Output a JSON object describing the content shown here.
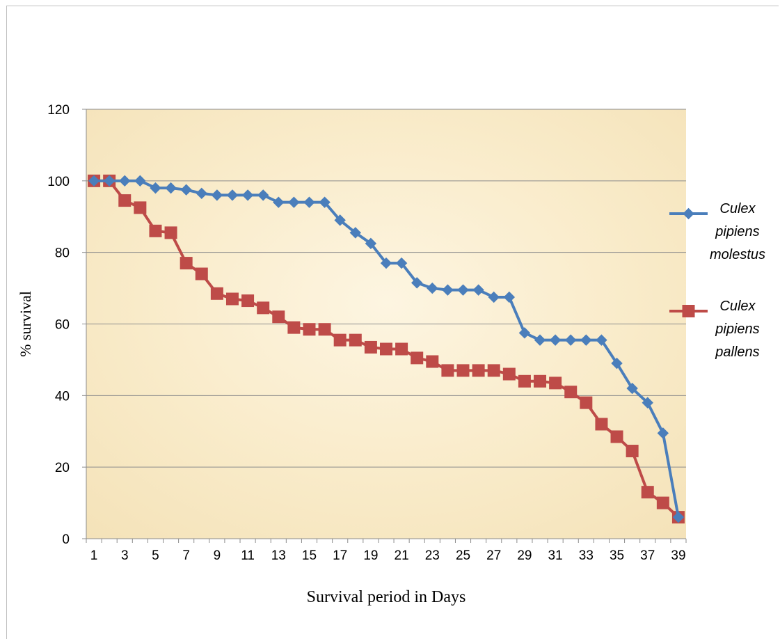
{
  "chart_data": {
    "type": "line",
    "title": "",
    "xlabel": "Survival period in Days",
    "ylabel": "% survival",
    "ylim": [
      0,
      120
    ],
    "yticks": [
      0,
      20,
      40,
      60,
      80,
      100,
      120
    ],
    "x": [
      1,
      2,
      3,
      4,
      5,
      6,
      7,
      8,
      9,
      10,
      11,
      12,
      13,
      14,
      15,
      16,
      17,
      18,
      19,
      20,
      21,
      22,
      23,
      24,
      25,
      26,
      27,
      28,
      29,
      30,
      31,
      32,
      33,
      34,
      35,
      36,
      37,
      38,
      39
    ],
    "xtick_labels": [
      "1",
      "3",
      "5",
      "7",
      "9",
      "11",
      "13",
      "15",
      "17",
      "19",
      "21",
      "23",
      "25",
      "27",
      "29",
      "31",
      "33",
      "35",
      "37",
      "39"
    ],
    "grid": "horizontal",
    "legend_position": "right",
    "series": [
      {
        "name": "Culex pipiens molestus",
        "legend_lines": [
          "Culex",
          "pipiens",
          "molestus"
        ],
        "color": "#4a7ebb",
        "marker": "diamond",
        "values": [
          100,
          100,
          100,
          100,
          98,
          98,
          97.5,
          96.5,
          96,
          96,
          96,
          96,
          94,
          94,
          94,
          94,
          89,
          85.5,
          82.5,
          77,
          77,
          71.5,
          70,
          69.5,
          69.5,
          69.5,
          67.5,
          67.5,
          57.5,
          55.5,
          55.5,
          55.5,
          55.5,
          55.5,
          49,
          42,
          38,
          29.5,
          6
        ]
      },
      {
        "name": "Culex pipiens pallens",
        "legend_lines": [
          "Culex",
          "pipiens",
          "pallens"
        ],
        "color": "#be4b48",
        "marker": "square",
        "values": [
          100,
          100,
          94.5,
          92.5,
          86,
          85.5,
          77,
          74,
          68.5,
          67,
          66.5,
          64.5,
          62,
          59,
          58.5,
          58.5,
          55.5,
          55.5,
          53.5,
          53,
          53,
          50.5,
          49.5,
          47,
          47,
          47,
          47,
          46,
          44,
          44,
          43.5,
          41,
          38,
          32,
          28.5,
          24.5,
          13,
          10,
          6
        ]
      }
    ]
  }
}
